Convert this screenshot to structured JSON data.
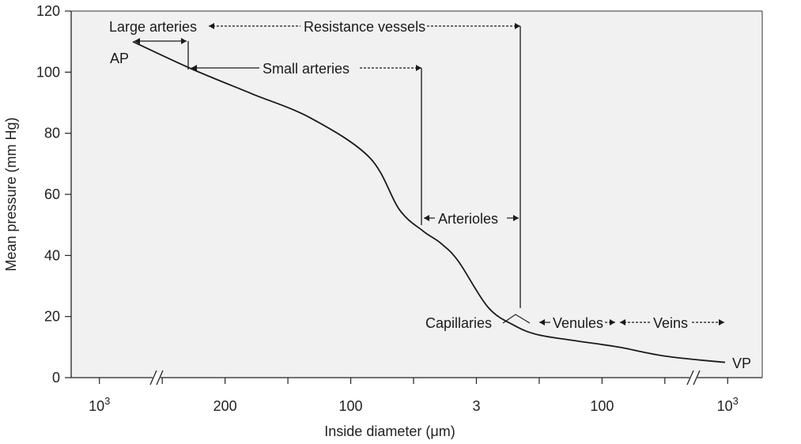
{
  "chart_data": {
    "type": "line",
    "xlabel": "Inside diameter (μm)",
    "ylabel": "Mean pressure (mm Hg)",
    "ylim": [
      0,
      120
    ],
    "y_ticks": [
      "0",
      "20",
      "40",
      "60",
      "80",
      "100",
      "120"
    ],
    "x_tick_labels": [
      "10³",
      "200",
      "100",
      "3",
      "100",
      "10³"
    ],
    "x_tick_label_parts": [
      {
        "base": "10",
        "sup": "3"
      },
      {
        "base": "200",
        "sup": ""
      },
      {
        "base": "100",
        "sup": ""
      },
      {
        "base": "3",
        "sup": ""
      },
      {
        "base": "100",
        "sup": ""
      },
      {
        "base": "10",
        "sup": "3"
      }
    ],
    "x_tick_count": 11,
    "axis_breaks": "two breaks on x axis",
    "grid": false,
    "series": [
      {
        "x_order": [
          0.0,
          0.1,
          0.2,
          0.3,
          0.4,
          0.45,
          0.49,
          0.52,
          0.55,
          0.6,
          0.645,
          0.685,
          0.75,
          0.82,
          0.9,
          1.0
        ],
        "values": [
          110,
          101,
          93,
          85,
          72,
          55,
          48,
          44,
          38,
          23,
          17,
          14,
          12,
          10,
          7,
          5
        ]
      }
    ],
    "annotations": {
      "large_arteries": "Large arteries",
      "resistance_vessels": "Resistance vessels",
      "small_arteries": "Small arteries",
      "arterioles": "Arterioles",
      "capillaries": "Capillaries",
      "venules": "Venules",
      "veins": "Veins",
      "ap": "AP",
      "vp": "VP"
    }
  }
}
